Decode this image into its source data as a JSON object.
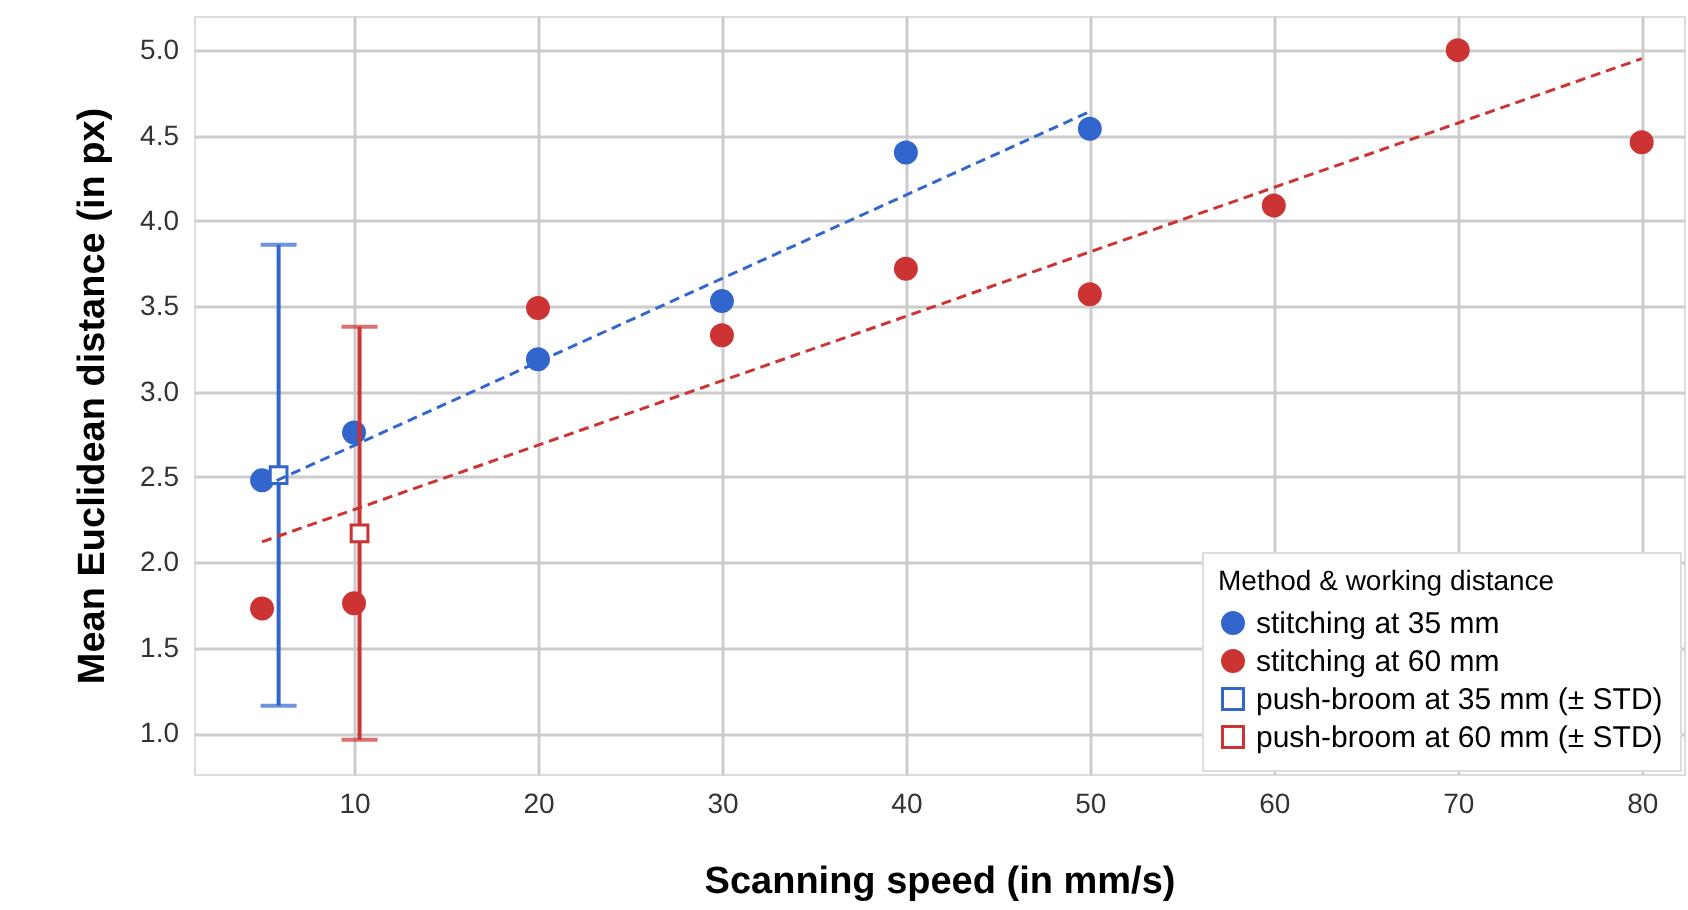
{
  "chart_data": {
    "type": "scatter",
    "xlabel": "Scanning speed (in mm/s)",
    "ylabel": "Mean Euclidean distance (in px)",
    "legend_title": "Method & working distance",
    "xlim": [
      1.3,
      82.3
    ],
    "xticks": [
      10,
      20,
      30,
      40,
      50,
      60,
      70,
      80
    ],
    "ylim": [
      0.76,
      5.2
    ],
    "yticks": [
      {
        "value": 1,
        "label": "1.0"
      },
      1.5,
      {
        "value": 2,
        "label": "2.0"
      },
      2.5,
      {
        "value": 3,
        "label": "3.0"
      },
      3.5,
      {
        "value": 4,
        "label": "4.0"
      },
      4.5,
      {
        "value": 5,
        "label": "5.0"
      }
    ],
    "grid": true,
    "legend": "bottom right",
    "series": [
      {
        "name": "stitching at 35 mm",
        "marker": "circle",
        "color": "#3366cc",
        "x": [
          5,
          10,
          20,
          30,
          40,
          50
        ],
        "values": [
          2.48,
          2.76,
          3.19,
          3.53,
          4.4,
          4.54
        ]
      },
      {
        "name": "stitching at 60 mm",
        "marker": "circle",
        "color": "#cc3333",
        "x": [
          5,
          10,
          20,
          30,
          40,
          50,
          60,
          70,
          80
        ],
        "values": [
          1.73,
          1.76,
          3.49,
          3.33,
          3.72,
          3.57,
          4.09,
          5.0,
          4.46
        ]
      },
      {
        "name": "push-broom at 35 mm (± STD)",
        "marker": "square",
        "color": "#3366cc",
        "x": [
          5.9
        ],
        "values": [
          2.51
        ],
        "errors": [
          1.35
        ]
      },
      {
        "name": "push-broom at 60 mm (± STD)",
        "marker": "square",
        "color": "#cc3333",
        "x": [
          10.3
        ],
        "values": [
          2.17
        ],
        "errors": [
          1.21
        ]
      },
      {
        "type": "line",
        "line_style": "dashed",
        "marker": "none",
        "color": "#3366cc",
        "x": [
          5,
          50
        ],
        "values": [
          2.44,
          4.64
        ]
      },
      {
        "type": "line",
        "line_style": "dashed",
        "marker": "none",
        "color": "#cc3333",
        "x": [
          5,
          80
        ],
        "values": [
          2.12,
          4.95
        ]
      }
    ]
  }
}
